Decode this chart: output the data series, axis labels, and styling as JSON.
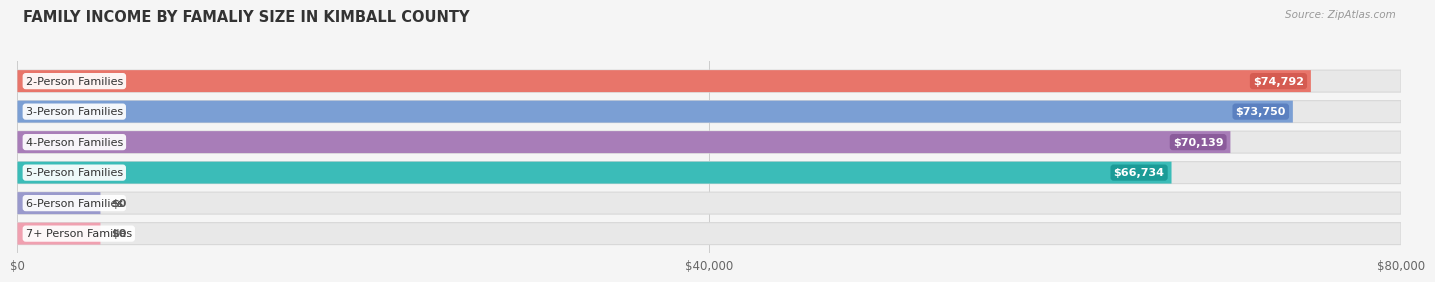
{
  "title": "FAMILY INCOME BY FAMALIY SIZE IN KIMBALL COUNTY",
  "source": "Source: ZipAtlas.com",
  "categories": [
    "2-Person Families",
    "3-Person Families",
    "4-Person Families",
    "5-Person Families",
    "6-Person Families",
    "7+ Person Families"
  ],
  "values": [
    74792,
    73750,
    70139,
    66734,
    0,
    0
  ],
  "bar_colors": [
    "#E8756A",
    "#7B9FD4",
    "#A87DB8",
    "#3BBCB8",
    "#9999CC",
    "#F0A0B0"
  ],
  "value_label_bg": [
    "#D45A50",
    "#5A7FBF",
    "#8A5A9A",
    "#1A9A96",
    "#7777AA",
    "#D07090"
  ],
  "max_value": 80000,
  "xtick_values": [
    0,
    40000,
    80000
  ],
  "xtick_labels": [
    "$0",
    "$40,000",
    "$80,000"
  ],
  "value_labels": [
    "$74,792",
    "$73,750",
    "$70,139",
    "$66,734",
    "$0",
    "$0"
  ],
  "bar_bg_color": "#e8e8e8",
  "bar_bg_edge": "#d8d8d8",
  "fig_bg": "#f5f5f5",
  "title_fontsize": 10.5,
  "label_fontsize": 8,
  "value_fontsize": 8,
  "stub_value": 4800,
  "bar_height": 0.72,
  "bar_gap": 1.0
}
